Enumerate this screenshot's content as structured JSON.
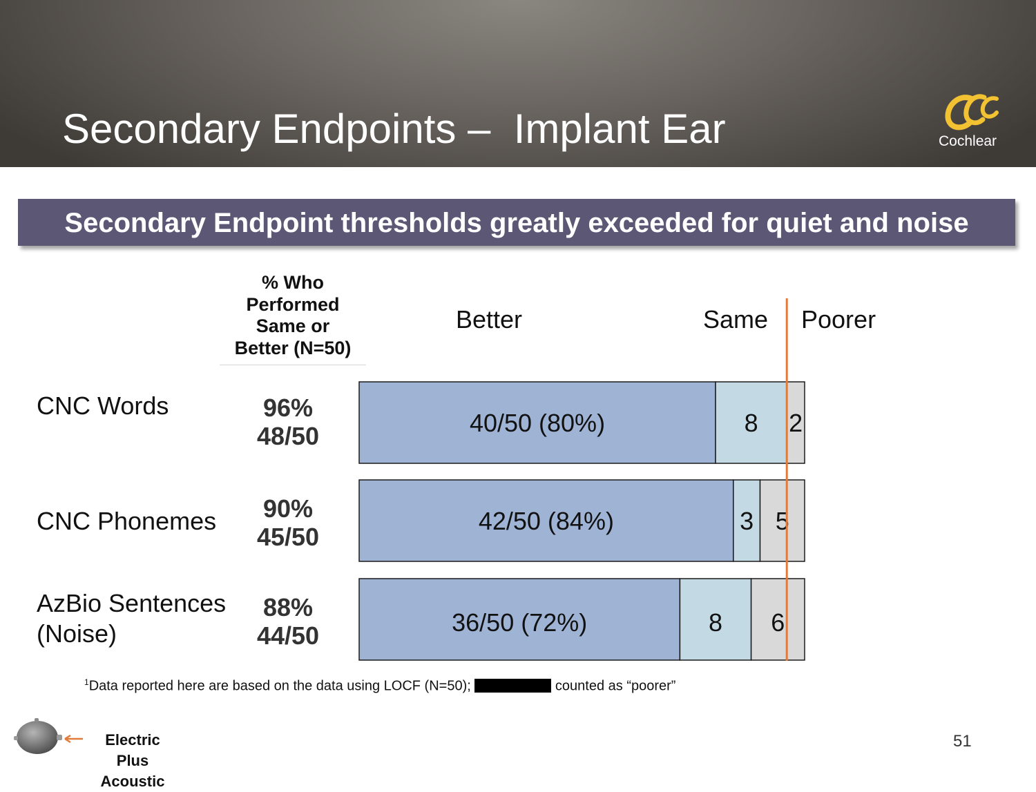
{
  "slide": {
    "title": "Secondary Endpoints –  Implant Ear",
    "logo_text": "Cochlear",
    "banner": "Secondary Endpoint thresholds greatly exceeded for quiet and noise",
    "column_header": [
      "% Who",
      "Performed",
      "Same or",
      "Better (N=50)"
    ],
    "rows": [
      {
        "label_lines": [
          "CNC Words"
        ],
        "pct": "96%",
        "count": "48/50"
      },
      {
        "label_lines": [
          "CNC Phonemes"
        ],
        "pct": "90%",
        "count": "45/50"
      },
      {
        "label_lines": [
          "AzBio Sentences",
          "(Noise)"
        ],
        "pct": "88%",
        "count": "44/50"
      }
    ],
    "footnote_sup": "1",
    "footnote_before": "Data reported here are based on the data using LOCF (N=50); ",
    "footnote_after": " counted as “poorer”",
    "legend_label": [
      "Electric Plus",
      "Acoustic"
    ],
    "page_number": "51",
    "colors": {
      "header": "#6b6661",
      "banner": "#5b5774",
      "logo": "#f2c232",
      "marker": "#e07b39"
    }
  },
  "chart_data": {
    "type": "bar",
    "orientation": "horizontal",
    "stacked": true,
    "categories": [
      "CNC Words",
      "CNC Phonemes",
      "AzBio Sentences (Noise)"
    ],
    "headers": [
      "Better",
      "Same",
      "Poorer"
    ],
    "series": [
      {
        "name": "Better",
        "values": [
          40,
          42,
          36
        ],
        "labels": [
          "40/50 (80%)",
          "42/50 (84%)",
          "36/50 (72%)"
        ],
        "color": "#9fb3d5"
      },
      {
        "name": "Same",
        "values": [
          8,
          3,
          8
        ],
        "labels": [
          "8",
          "3",
          "8"
        ],
        "color": "#c3dae4"
      },
      {
        "name": "Poorer",
        "values": [
          2,
          5,
          6
        ],
        "labels": [
          "2",
          "5",
          "6"
        ],
        "color": "#d9d9d9"
      }
    ],
    "reference_line": "boundary between Same and Poorer",
    "reference_line_color": "#e07b39"
  }
}
